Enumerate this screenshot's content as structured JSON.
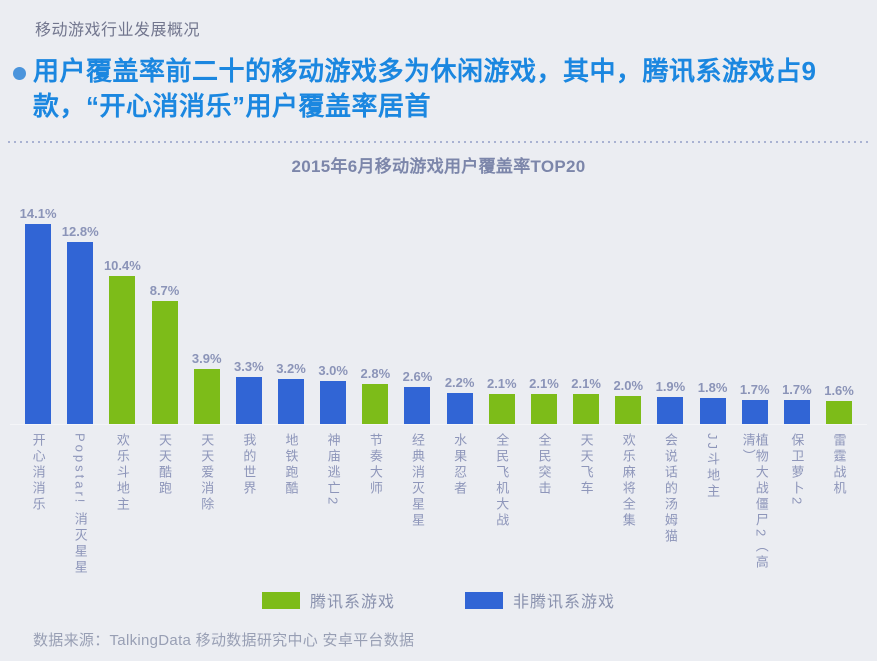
{
  "page": {
    "section_title": "移动游戏行业发展概况",
    "headline": "用户覆盖率前二十的移动游戏多为休闲游戏，其中，腾讯系游戏占9\n款，“开心消消乐”用户覆盖率居首",
    "source_note": "数据来源：TalkingData 移动数据研究中心 安卓平台数据"
  },
  "colors": {
    "background": "#ebedf2",
    "tencent_green": "#7dbc19",
    "non_tencent_blue": "#3165d5",
    "headline_blue": "#1b87e0",
    "value_label": "#8b94b8"
  },
  "chart_data": {
    "type": "bar",
    "title": "2015年6月移动游戏用户覆盖率TOP20",
    "unit": "%",
    "ylim": [
      0,
      15
    ],
    "grid": false,
    "legend_position": "bottom",
    "categories": [
      "开心消消乐",
      "Popstar! 消灭星星",
      "欢乐斗地主",
      "天天酷跑",
      "天天爱消除",
      "我的世界",
      "地铁跑酷",
      "神庙逃亡2",
      "节奏大师",
      "经典消灭星星",
      "水果忍者",
      "全民飞机大战",
      "全民突击",
      "天天飞车",
      "欢乐麻将全集",
      "会说话的汤姆猫",
      "JJ斗地主",
      "植物大战僵尸2（高清）",
      "保卫萝卜2",
      "雷霆战机"
    ],
    "values": [
      14.1,
      12.8,
      10.4,
      8.7,
      3.9,
      3.3,
      3.2,
      3.0,
      2.8,
      2.6,
      2.2,
      2.1,
      2.1,
      2.1,
      2.0,
      1.9,
      1.8,
      1.7,
      1.7,
      1.6
    ],
    "labels": [
      "14.1%",
      "12.8%",
      "10.4%",
      "8.7%",
      "3.9%",
      "3.3%",
      "3.2%",
      "3.0%",
      "2.8%",
      "2.6%",
      "2.2%",
      "2.1%",
      "2.1%",
      "2.1%",
      "2.0%",
      "1.9%",
      "1.8%",
      "1.7%",
      "1.7%",
      "1.6%"
    ],
    "is_tencent": [
      false,
      false,
      true,
      true,
      true,
      false,
      false,
      false,
      true,
      false,
      false,
      true,
      true,
      true,
      true,
      false,
      false,
      false,
      false,
      true
    ],
    "legend": [
      {
        "label": "腾讯系游戏",
        "color": "#7dbc19"
      },
      {
        "label": "非腾讯系游戏",
        "color": "#3165d5"
      }
    ]
  }
}
